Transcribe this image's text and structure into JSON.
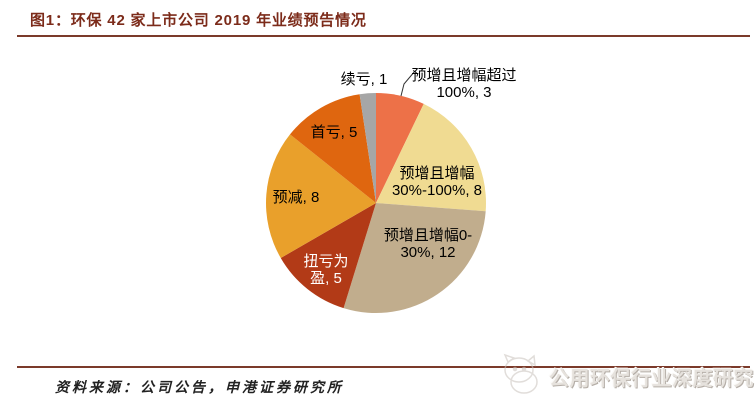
{
  "figure": {
    "title": "图1：环保 42 家上市公司 2019 年业绩预告情况",
    "source": "资料来源：公司公告，申港证券研究所",
    "watermark": "公用环保行业深度研究"
  },
  "colors": {
    "background": "#FFFFFF",
    "title_text": "#7C2B1A",
    "rule": "#7B3A2A",
    "watermark_text": "#E6E2DD",
    "leader_line": "#333333"
  },
  "chart_data": {
    "type": "pie",
    "title": "",
    "total": 42,
    "start_angle_deg": 0,
    "direction": "clockwise",
    "legend": "none",
    "slices": [
      {
        "label": "预增且增幅超过100%",
        "value": 3,
        "color": "#ED7148",
        "text_color": "#000000",
        "label_lines": [
          "预增且增幅超过",
          "100%, 3"
        ],
        "label_placement": "outside",
        "leader_line": true
      },
      {
        "label": "预增且增幅30%-100%",
        "value": 8,
        "color": "#F0DB92",
        "text_color": "#000000",
        "label_lines": [
          "预增且增幅",
          "30%-100%, 8"
        ],
        "label_placement": "inside",
        "leader_line": false
      },
      {
        "label": "预增且增幅0-30%",
        "value": 12,
        "color": "#C1AD8D",
        "text_color": "#000000",
        "label_lines": [
          "预增且增幅0-",
          "30%, 12"
        ],
        "label_placement": "inside",
        "leader_line": false
      },
      {
        "label": "扭亏为盈",
        "value": 5,
        "color": "#B23A17",
        "text_color": "#FFFFFF",
        "label_lines": [
          "扭亏为",
          "盈, 5"
        ],
        "label_placement": "inside",
        "leader_line": false
      },
      {
        "label": "预减",
        "value": 8,
        "color": "#E9A02B",
        "text_color": "#000000",
        "label_lines": [
          "预减, 8"
        ],
        "label_placement": "inside",
        "leader_line": false
      },
      {
        "label": "首亏",
        "value": 5,
        "color": "#DF660F",
        "text_color": "#000000",
        "label_lines": [
          "首亏, 5"
        ],
        "label_placement": "inside",
        "leader_line": false
      },
      {
        "label": "续亏",
        "value": 1,
        "color": "#A6A6A6",
        "text_color": "#000000",
        "label_lines": [
          "续亏, 1"
        ],
        "label_placement": "outside",
        "leader_line": false
      }
    ]
  }
}
